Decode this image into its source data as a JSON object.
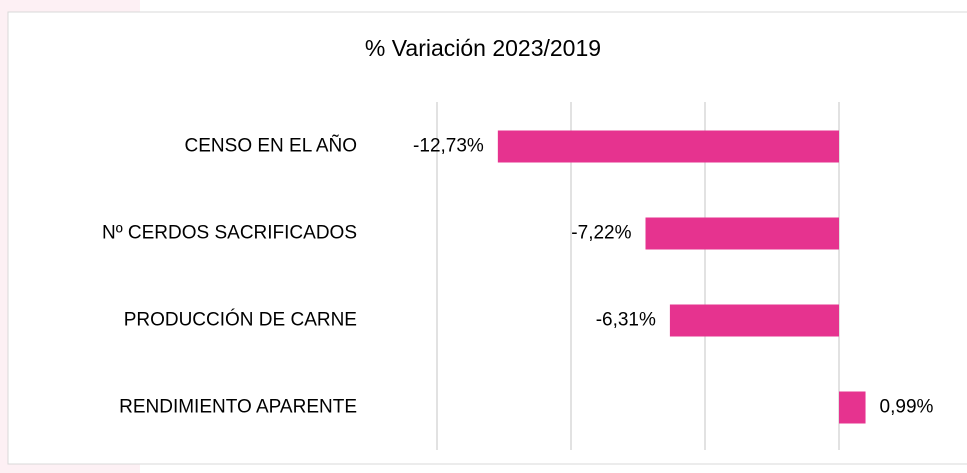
{
  "chart_data": {
    "type": "barh",
    "title": "% Variación 2023/2019",
    "categories": [
      "CENSO EN EL AÑO",
      "Nº CERDOS SACRIFICADOS",
      "PRODUCCIÓN DE CARNE",
      "RENDIMIENTO APARENTE"
    ],
    "values": [
      -12.73,
      -7.22,
      -6.31,
      0.99
    ],
    "value_labels": [
      "-12,73%",
      "-7,22%",
      "-6,31%",
      "0,99%"
    ],
    "color": "#e6338f",
    "xlim": [
      -15,
      5
    ],
    "xticks": [
      -15,
      -10,
      -5,
      0
    ],
    "grid": true
  }
}
